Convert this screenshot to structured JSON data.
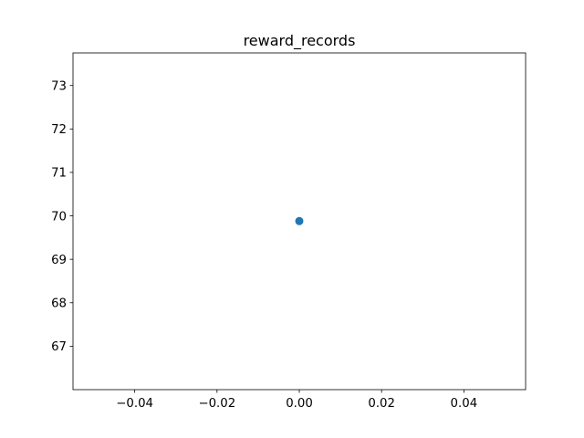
{
  "chart_data": {
    "type": "scatter",
    "title": "reward_records",
    "xlabel": "",
    "ylabel": "",
    "x": [
      0.0
    ],
    "y": [
      69.88
    ],
    "xlim": [
      -0.055,
      0.055
    ],
    "ylim": [
      66.0,
      73.75
    ],
    "xticks": [
      -0.04,
      -0.02,
      0.0,
      0.02,
      0.04
    ],
    "xtick_labels": [
      "−0.04",
      "−0.02",
      "0.00",
      "0.02",
      "0.04"
    ],
    "yticks": [
      67,
      68,
      69,
      70,
      71,
      72,
      73
    ],
    "ytick_labels": [
      "67",
      "68",
      "69",
      "70",
      "71",
      "72",
      "73"
    ],
    "grid": false,
    "legend": "none",
    "colors": {
      "marker": "#1f77b4",
      "axes": "#000000",
      "background": "#ffffff"
    }
  }
}
